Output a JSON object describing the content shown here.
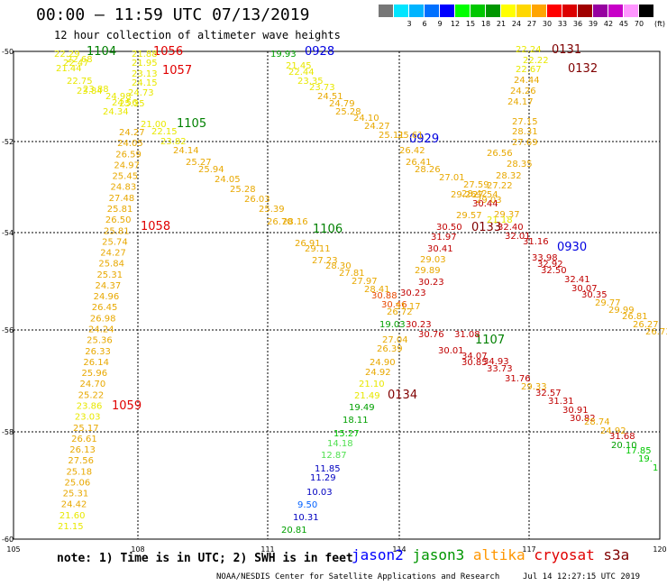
{
  "header": {
    "title": "00:00 – 11:59 UTC 07/13/2019",
    "subtitle": "12 hour collection of altimeter wave heights"
  },
  "legend": {
    "unit": "(ft)",
    "bins": [
      {
        "label": "",
        "color": "#777777"
      },
      {
        "label": "3",
        "color": "#00e5ff"
      },
      {
        "label": "6",
        "color": "#00b4ff"
      },
      {
        "label": "9",
        "color": "#0070ff"
      },
      {
        "label": "12",
        "color": "#0000ff"
      },
      {
        "label": "15",
        "color": "#00ff00"
      },
      {
        "label": "18",
        "color": "#00c800"
      },
      {
        "label": "21",
        "color": "#009600"
      },
      {
        "label": "24",
        "color": "#ffff00"
      },
      {
        "label": "27",
        "color": "#ffd700"
      },
      {
        "label": "30",
        "color": "#ffa500"
      },
      {
        "label": "33",
        "color": "#ff0000"
      },
      {
        "label": "36",
        "color": "#dc0000"
      },
      {
        "label": "39",
        "color": "#a00000"
      },
      {
        "label": "42",
        "color": "#9600a0"
      },
      {
        "label": "45",
        "color": "#c800c8"
      },
      {
        "label": "70",
        "color": "#ff96ff"
      },
      {
        "label": "",
        "color": "#000000"
      }
    ]
  },
  "map": {
    "lat_labels": [
      "-50",
      "-52",
      "-54",
      "-56",
      "-58",
      "-60"
    ],
    "lon_labels": [
      "105",
      "108",
      "111",
      "114",
      "117",
      "120"
    ],
    "passes": [
      {
        "label": "1104",
        "color": "#008000"
      },
      {
        "label": "1056",
        "color": "#e00000"
      },
      {
        "label": "1057",
        "color": "#e00000"
      },
      {
        "label": "0928",
        "color": "#0000e0"
      },
      {
        "label": "0131",
        "color": "#800000"
      },
      {
        "label": "0132",
        "color": "#800000"
      },
      {
        "label": "1105",
        "color": "#008000"
      },
      {
        "label": "0929",
        "color": "#0000e0"
      },
      {
        "label": "1058",
        "color": "#e00000"
      },
      {
        "label": "1106",
        "color": "#008000"
      },
      {
        "label": "0133",
        "color": "#800000"
      },
      {
        "label": "0930",
        "color": "#0000e0"
      },
      {
        "label": "1107",
        "color": "#008000"
      },
      {
        "label": "0134",
        "color": "#800000"
      },
      {
        "label": "1059",
        "color": "#e00000"
      }
    ],
    "observations": [
      {
        "v": "22.29",
        "c": "#e8e800"
      },
      {
        "v": "22.68",
        "c": "#e8e800"
      },
      {
        "v": "22.47",
        "c": "#e8e800"
      },
      {
        "v": "21.44",
        "c": "#e8e800"
      },
      {
        "v": "22.75",
        "c": "#e8e800"
      },
      {
        "v": "23.84",
        "c": "#e8e800"
      },
      {
        "v": "23.88",
        "c": "#e8e800"
      },
      {
        "v": "24.56",
        "c": "#e8e800"
      },
      {
        "v": "24.34",
        "c": "#e8e800"
      },
      {
        "v": "21.88",
        "c": "#e8e800"
      },
      {
        "v": "21.95",
        "c": "#e8e800"
      },
      {
        "v": "23.13",
        "c": "#e8e800"
      },
      {
        "v": "24.15",
        "c": "#e8e800"
      },
      {
        "v": "24.73",
        "c": "#e8e800"
      },
      {
        "v": "24.98",
        "c": "#e8e800"
      },
      {
        "v": "25.35",
        "c": "#e8e800"
      },
      {
        "v": "21.00",
        "c": "#e8e800"
      },
      {
        "v": "24.27",
        "c": "#e8a800"
      },
      {
        "v": "24.05",
        "c": "#e8a800"
      },
      {
        "v": "26.59",
        "c": "#e8a800"
      },
      {
        "v": "24.97",
        "c": "#e8a800"
      },
      {
        "v": "25.45",
        "c": "#e8a800"
      },
      {
        "v": "24.83",
        "c": "#e8a800"
      },
      {
        "v": "27.48",
        "c": "#e8a800"
      },
      {
        "v": "25.81",
        "c": "#e8a800"
      },
      {
        "v": "26.50",
        "c": "#e8a800"
      },
      {
        "v": "25.81",
        "c": "#e8a800"
      },
      {
        "v": "25.74",
        "c": "#e8a800"
      },
      {
        "v": "24.27",
        "c": "#e8a800"
      },
      {
        "v": "25.84",
        "c": "#e8a800"
      },
      {
        "v": "25.31",
        "c": "#e8a800"
      },
      {
        "v": "24.37",
        "c": "#e8a800"
      },
      {
        "v": "24.96",
        "c": "#e8a800"
      },
      {
        "v": "26.45",
        "c": "#e8a800"
      },
      {
        "v": "26.98",
        "c": "#e8a800"
      },
      {
        "v": "24.24",
        "c": "#e8a800"
      },
      {
        "v": "25.36",
        "c": "#e8a800"
      },
      {
        "v": "26.33",
        "c": "#e8a800"
      },
      {
        "v": "26.14",
        "c": "#e8a800"
      },
      {
        "v": "25.96",
        "c": "#e8a800"
      },
      {
        "v": "24.70",
        "c": "#e8a800"
      },
      {
        "v": "25.22",
        "c": "#e8a800"
      },
      {
        "v": "23.86",
        "c": "#e8e800"
      },
      {
        "v": "23.03",
        "c": "#e8e800"
      },
      {
        "v": "25.17",
        "c": "#e8a800"
      },
      {
        "v": "26.61",
        "c": "#e8a800"
      },
      {
        "v": "26.13",
        "c": "#e8a800"
      },
      {
        "v": "27.56",
        "c": "#e8a800"
      },
      {
        "v": "25.18",
        "c": "#e8a800"
      },
      {
        "v": "25.06",
        "c": "#e8a800"
      },
      {
        "v": "25.31",
        "c": "#e8a800"
      },
      {
        "v": "24.42",
        "c": "#e8a800"
      },
      {
        "v": "21.60",
        "c": "#e8e800"
      },
      {
        "v": "21.15",
        "c": "#e8e800"
      },
      {
        "v": "22.15",
        "c": "#e8e800"
      },
      {
        "v": "23.82",
        "c": "#e8e800"
      },
      {
        "v": "24.14",
        "c": "#e8a800"
      },
      {
        "v": "25.27",
        "c": "#e8a800"
      },
      {
        "v": "25.94",
        "c": "#e8a800"
      },
      {
        "v": "24.05",
        "c": "#e8a800"
      },
      {
        "v": "25.28",
        "c": "#e8a800"
      },
      {
        "v": "26.03",
        "c": "#e8a800"
      },
      {
        "v": "25.39",
        "c": "#e8a800"
      },
      {
        "v": "26.70",
        "c": "#e8a800"
      },
      {
        "v": "28.16",
        "c": "#e8a800"
      },
      {
        "v": "26.91",
        "c": "#e8a800"
      },
      {
        "v": "29.11",
        "c": "#e8a800"
      },
      {
        "v": "27.23",
        "c": "#e8a800"
      },
      {
        "v": "28.30",
        "c": "#e8a800"
      },
      {
        "v": "27.81",
        "c": "#e8a800"
      },
      {
        "v": "27.97",
        "c": "#e8a800"
      },
      {
        "v": "28.41",
        "c": "#e8a800"
      },
      {
        "v": "30.88",
        "c": "#e84800"
      },
      {
        "v": "30.46",
        "c": "#e84800"
      },
      {
        "v": "31.17",
        "c": "#e8a800"
      },
      {
        "v": "26.72",
        "c": "#e8a800"
      },
      {
        "v": "19.03",
        "c": "#00a000"
      },
      {
        "v": "19.93",
        "c": "#00a000"
      },
      {
        "v": "21.45",
        "c": "#e8e800"
      },
      {
        "v": "22.44",
        "c": "#e8e800"
      },
      {
        "v": "23.35",
        "c": "#e8e800"
      },
      {
        "v": "23.73",
        "c": "#e8e800"
      },
      {
        "v": "24.51",
        "c": "#e8a800"
      },
      {
        "v": "24.79",
        "c": "#e8a800"
      },
      {
        "v": "25.28",
        "c": "#e8a800"
      },
      {
        "v": "24.10",
        "c": "#e8a800"
      },
      {
        "v": "24.27",
        "c": "#e8a800"
      },
      {
        "v": "25.11",
        "c": "#e8a800"
      },
      {
        "v": "25.61",
        "c": "#e8a800"
      },
      {
        "v": "26.42",
        "c": "#e8a800"
      },
      {
        "v": "26.41",
        "c": "#e8a800"
      },
      {
        "v": "28.26",
        "c": "#e8a800"
      },
      {
        "v": "27.01",
        "c": "#e8a800"
      },
      {
        "v": "27.59",
        "c": "#e8a800"
      },
      {
        "v": "29.26",
        "c": "#e8a800"
      },
      {
        "v": "29.03",
        "c": "#e8a800"
      },
      {
        "v": "29.57",
        "c": "#e8a800"
      },
      {
        "v": "29.37",
        "c": "#e8a800"
      },
      {
        "v": "21.18",
        "c": "#e8e800"
      },
      {
        "v": "22.24",
        "c": "#e8e800"
      },
      {
        "v": "22.22",
        "c": "#e8e800"
      },
      {
        "v": "22.67",
        "c": "#e8e800"
      },
      {
        "v": "24.44",
        "c": "#e8a800"
      },
      {
        "v": "24.26",
        "c": "#e8a800"
      },
      {
        "v": "24.17",
        "c": "#e8a800"
      },
      {
        "v": "27.15",
        "c": "#e8a800"
      },
      {
        "v": "28.31",
        "c": "#e8a800"
      },
      {
        "v": "27.69",
        "c": "#e8a800"
      },
      {
        "v": "26.56",
        "c": "#e8a800"
      },
      {
        "v": "28.35",
        "c": "#e8a800"
      },
      {
        "v": "28.32",
        "c": "#e8a800"
      },
      {
        "v": "27.22",
        "c": "#e8a800"
      },
      {
        "v": "27.54",
        "c": "#e8a800"
      },
      {
        "v": "28.42",
        "c": "#e8a800"
      },
      {
        "v": "30.44",
        "c": "#c00000"
      },
      {
        "v": "30.50",
        "c": "#c00000"
      },
      {
        "v": "31.97",
        "c": "#c00000"
      },
      {
        "v": "30.41",
        "c": "#c00000"
      },
      {
        "v": "29.03",
        "c": "#e8a800"
      },
      {
        "v": "29.89",
        "c": "#e8a800"
      },
      {
        "v": "30.23",
        "c": "#c00000"
      },
      {
        "v": "30.23",
        "c": "#c00000"
      },
      {
        "v": "30.23",
        "c": "#c00000"
      },
      {
        "v": "30.76",
        "c": "#c00000"
      },
      {
        "v": "30.01",
        "c": "#c00000"
      },
      {
        "v": "31.08",
        "c": "#c00000"
      },
      {
        "v": "34.07",
        "c": "#c00000"
      },
      {
        "v": "30.85",
        "c": "#c00000"
      },
      {
        "v": "34.93",
        "c": "#c00000"
      },
      {
        "v": "33.73",
        "c": "#c00000"
      },
      {
        "v": "31.76",
        "c": "#c00000"
      },
      {
        "v": "29.33",
        "c": "#e8a800"
      },
      {
        "v": "32.57",
        "c": "#c00000"
      },
      {
        "v": "31.31",
        "c": "#c00000"
      },
      {
        "v": "30.91",
        "c": "#c00000"
      },
      {
        "v": "30.82",
        "c": "#c00000"
      },
      {
        "v": "28.74",
        "c": "#e8a800"
      },
      {
        "v": "24.92",
        "c": "#e8a800"
      },
      {
        "v": "31.68",
        "c": "#c00000"
      },
      {
        "v": "32.40",
        "c": "#c00000"
      },
      {
        "v": "32.01",
        "c": "#c00000"
      },
      {
        "v": "31.16",
        "c": "#c00000"
      },
      {
        "v": "33.98",
        "c": "#c00000"
      },
      {
        "v": "32.92",
        "c": "#c00000"
      },
      {
        "v": "32.50",
        "c": "#c00000"
      },
      {
        "v": "32.41",
        "c": "#c00000"
      },
      {
        "v": "30.07",
        "c": "#c00000"
      },
      {
        "v": "30.35",
        "c": "#c00000"
      },
      {
        "v": "29.77",
        "c": "#e8a800"
      },
      {
        "v": "29.99",
        "c": "#e8a800"
      },
      {
        "v": "26.81",
        "c": "#e8a800"
      },
      {
        "v": "26.27",
        "c": "#e8a800"
      },
      {
        "v": "26.73",
        "c": "#e8a800"
      },
      {
        "v": "27.04",
        "c": "#e8a800"
      },
      {
        "v": "26.39",
        "c": "#e8a800"
      },
      {
        "v": "24.90",
        "c": "#e8a800"
      },
      {
        "v": "24.92",
        "c": "#e8a800"
      },
      {
        "v": "21.10",
        "c": "#e8e800"
      },
      {
        "v": "21.49",
        "c": "#e8e800"
      },
      {
        "v": "19.49",
        "c": "#00a000"
      },
      {
        "v": "18.11",
        "c": "#00a000"
      },
      {
        "v": "15.27",
        "c": "#00c800"
      },
      {
        "v": "14.18",
        "c": "#50e050"
      },
      {
        "v": "12.87",
        "c": "#50e050"
      },
      {
        "v": "11.85",
        "c": "#0000c0"
      },
      {
        "v": "11.29",
        "c": "#0000c0"
      },
      {
        "v": "10.03",
        "c": "#0000c0"
      },
      {
        "v": "9.50",
        "c": "#0060ff"
      },
      {
        "v": "10.31",
        "c": "#0000c0"
      },
      {
        "v": "20.81",
        "c": "#00a000"
      },
      {
        "v": "20.10",
        "c": "#00a000"
      },
      {
        "v": "17.85",
        "c": "#00c800"
      },
      {
        "v": "19.",
        "c": "#00c800"
      },
      {
        "v": "1",
        "c": "#00c800"
      }
    ]
  },
  "footer": {
    "note": "note: 1) Time is in UTC; 2) SWH is in feet",
    "satellites": [
      {
        "name": "jason2",
        "color": "#0000ff"
      },
      {
        "name": "jason3",
        "color": "#009600"
      },
      {
        "name": "altika",
        "color": "#ff9600"
      },
      {
        "name": "cryosat",
        "color": "#e00000"
      },
      {
        "name": "s3a",
        "color": "#800000"
      }
    ],
    "credit": "NOAA/NESDIS Center for Satellite Applications and Research",
    "timestamp": "Jul 14 12:27:15 UTC 2019"
  }
}
